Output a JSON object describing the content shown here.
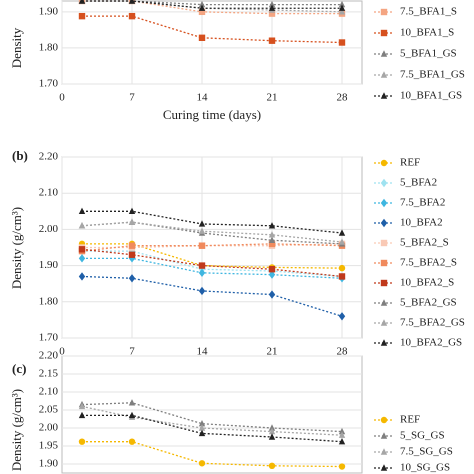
{
  "chart_data": [
    {
      "type": "line",
      "ylabel": "Density",
      "xlabel": "Curing time (days)",
      "x": [
        2,
        7,
        14,
        21,
        28
      ],
      "xlim": [
        0,
        30
      ],
      "xticks": [
        0,
        7,
        14,
        21,
        28
      ],
      "ylim": [
        1.7,
        1.93
      ],
      "yticks": [
        {
          "value": 1.7,
          "label": "1.70"
        },
        {
          "value": 1.8,
          "label": "1.80"
        },
        {
          "value": 1.9,
          "label": "1.90"
        }
      ],
      "grid": true,
      "legend": "right",
      "series": [
        {
          "name": "7.5_BFA1_S",
          "color": "#f4a582",
          "marker": "square",
          "values": [
            1.93,
            1.93,
            1.9,
            1.895,
            1.895
          ]
        },
        {
          "name": "10_BFA1_S",
          "color": "#d6501e",
          "marker": "square",
          "values": [
            1.888,
            1.888,
            1.828,
            1.82,
            1.815
          ]
        },
        {
          "name": "5_BFA1_GS",
          "color": "#7f7f7f",
          "marker": "triangle",
          "values": [
            1.93,
            1.93,
            1.92,
            1.92,
            1.92
          ]
        },
        {
          "name": "7.5_BFA1_GS",
          "color": "#a6a6a6",
          "marker": "triangle",
          "values": [
            1.93,
            1.93,
            1.91,
            1.905,
            1.9
          ]
        },
        {
          "name": "10_BFA1_GS",
          "color": "#222222",
          "marker": "triangle",
          "values": [
            1.93,
            1.93,
            1.91,
            1.91,
            1.91
          ]
        }
      ]
    },
    {
      "type": "line",
      "panel": "(b)",
      "ylabel": "Density (g/cm³)",
      "xlabel": "Curing time (days)",
      "x": [
        2,
        7,
        14,
        21,
        28
      ],
      "xlim": [
        0,
        30
      ],
      "xticks": [
        0,
        7,
        14,
        21,
        28
      ],
      "ylim": [
        1.7,
        2.2
      ],
      "yticks": [
        {
          "value": 1.7,
          "label": "1.70"
        },
        {
          "value": 1.8,
          "label": "1.80"
        },
        {
          "value": 1.9,
          "label": "1.90"
        },
        {
          "value": 2.0,
          "label": "2.00"
        },
        {
          "value": 2.1,
          "label": "2.10"
        },
        {
          "value": 2.2,
          "label": "2.20"
        }
      ],
      "grid": true,
      "legend": "right",
      "series": [
        {
          "name": "REF",
          "color": "#f5b800",
          "marker": "circle",
          "values": [
            1.96,
            1.96,
            1.9,
            1.895,
            1.893
          ]
        },
        {
          "name": "5_BFA2",
          "color": "#9fe2f0",
          "marker": "diamond",
          "values": [
            1.94,
            1.94,
            1.89,
            1.885,
            1.87
          ]
        },
        {
          "name": "7.5_BFA2",
          "color": "#3fb6e0",
          "marker": "diamond",
          "values": [
            1.92,
            1.92,
            1.88,
            1.875,
            1.865
          ]
        },
        {
          "name": "10_BFA2",
          "color": "#1f5fa8",
          "marker": "diamond",
          "values": [
            1.87,
            1.865,
            1.83,
            1.82,
            1.76
          ]
        },
        {
          "name": "5_BFA2_S",
          "color": "#f9c9b5",
          "marker": "square",
          "values": [
            1.95,
            1.95,
            1.955,
            1.955,
            1.96
          ]
        },
        {
          "name": "7.5_BFA2_S",
          "color": "#f08a5d",
          "marker": "square",
          "values": [
            1.94,
            1.955,
            1.955,
            1.96,
            1.955
          ]
        },
        {
          "name": "10_BFA2_S",
          "color": "#c0391b",
          "marker": "square",
          "values": [
            1.945,
            1.93,
            1.9,
            1.89,
            1.87
          ]
        },
        {
          "name": "5_BFA2_GS",
          "color": "#7f7f7f",
          "marker": "triangle",
          "values": [
            2.01,
            2.02,
            1.99,
            1.97,
            1.96
          ]
        },
        {
          "name": "7.5_BFA2_GS",
          "color": "#a6a6a6",
          "marker": "triangle",
          "values": [
            2.01,
            2.02,
            1.995,
            1.985,
            1.965
          ]
        },
        {
          "name": "10_BFA2_GS",
          "color": "#222222",
          "marker": "triangle",
          "values": [
            2.05,
            2.05,
            2.015,
            2.01,
            1.99
          ]
        }
      ]
    },
    {
      "type": "line",
      "panel": "(c)",
      "ylabel": "Density (g/cm³)",
      "x": [
        2,
        7,
        14,
        21,
        28
      ],
      "xlim": [
        0,
        30
      ],
      "ylim": [
        1.875,
        2.2
      ],
      "yticks": [
        {
          "value": 1.9,
          "label": "1.90"
        },
        {
          "value": 1.95,
          "label": "1.95"
        },
        {
          "value": 2.0,
          "label": "2.00"
        },
        {
          "value": 2.05,
          "label": "2.05"
        },
        {
          "value": 2.1,
          "label": "2.10"
        },
        {
          "value": 2.15,
          "label": "2.15"
        },
        {
          "value": 2.2,
          "label": "2.20"
        }
      ],
      "grid": true,
      "legend": "right",
      "series": [
        {
          "name": "REF",
          "color": "#f5b800",
          "marker": "circle",
          "values": [
            1.962,
            1.962,
            1.902,
            1.895,
            1.893
          ]
        },
        {
          "name": "5_SG_GS",
          "color": "#7f7f7f",
          "marker": "triangle",
          "values": [
            2.065,
            2.07,
            2.012,
            2.0,
            1.99
          ]
        },
        {
          "name": "7.5_SG_GS",
          "color": "#a6a6a6",
          "marker": "triangle",
          "values": [
            2.06,
            2.03,
            2.0,
            1.99,
            1.98
          ]
        },
        {
          "name": "10_SG_GS",
          "color": "#222222",
          "marker": "triangle",
          "values": [
            2.035,
            2.035,
            1.985,
            1.975,
            1.962
          ]
        }
      ]
    }
  ]
}
